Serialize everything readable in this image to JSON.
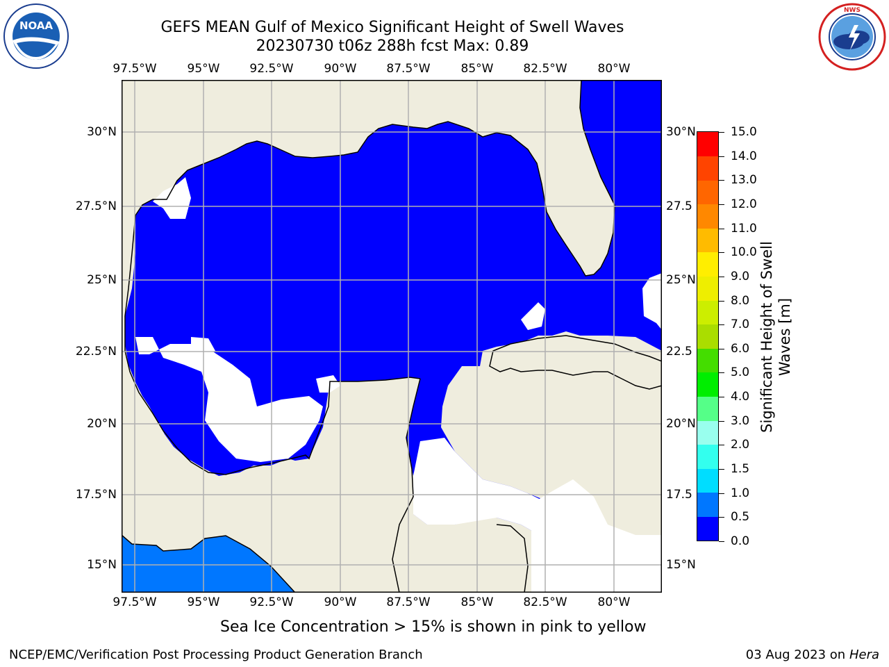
{
  "title": {
    "line1": "GEFS MEAN Gulf of Mexico Significant Height of Swell Waves",
    "line2": "20230730 t06z 288h fcst   Max: 0.89"
  },
  "lon_labels": [
    "97.5°W",
    "95°W",
    "92.5°W",
    "90°W",
    "87.5°W",
    "85°W",
    "82.5°W",
    "80°W"
  ],
  "lat_labels": [
    "30°N",
    "27.5°N",
    "25°N",
    "22.5°N",
    "20°N",
    "17.5°N",
    "15°N"
  ],
  "lat_labels_right": [
    "30°N",
    "27.5",
    "25°N",
    "22.5",
    "20°N",
    "17.5",
    "15°N"
  ],
  "colorbar": {
    "title": "Significant Height of Swell Waves [m]",
    "tick_labels": [
      "0.0",
      "0.5",
      "1.0",
      "1.5",
      "2.0",
      "3.0",
      "4.0",
      "5.0",
      "6.0",
      "7.0",
      "8.0",
      "9.0",
      "10.0",
      "11.0",
      "12.0",
      "13.0",
      "14.0",
      "15.0"
    ],
    "colors": [
      "#0000ff",
      "#0077ff",
      "#00ddff",
      "#33ffee",
      "#99ffee",
      "#55ff88",
      "#00ee00",
      "#44dd00",
      "#aadd00",
      "#ccee00",
      "#eeee00",
      "#ffee00",
      "#ffbb00",
      "#ff8800",
      "#ff6600",
      "#ff4400",
      "#ff0000"
    ]
  },
  "ice_note": "Sea Ice Concentration > 15% is shown in pink to yellow",
  "footer": {
    "left": "NCEP/EMC/Verification Post Processing Product Generation Branch",
    "date": "03 Aug 2023 on",
    "host": "Hera"
  },
  "logos": {
    "noaa_text": "NOAA",
    "noaa_ring": "NATIONAL OCEANIC AND ATMOSPHERIC ADMINISTRATION · U.S. DEPARTMENT OF COMMERCE",
    "nws_ring": "NATIONAL WEATHER SERVICE"
  },
  "colors": {
    "land": "#efedde",
    "ocean_main": "#0000ff",
    "ocean_pacific": "#0077ff",
    "grid": "#b0b0b0"
  }
}
